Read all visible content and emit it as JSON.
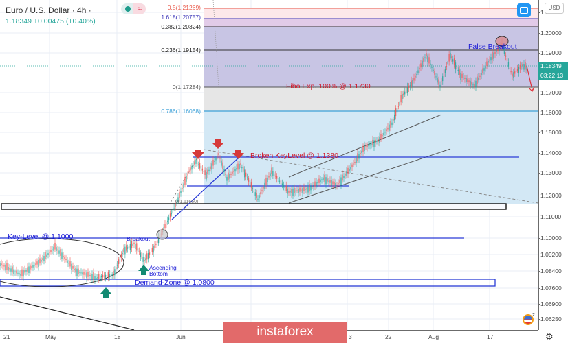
{
  "header": {
    "title": "Euro / U.S. Dollar · 4h ·",
    "quote": "1.18349  +0.00475 (+0.40%)",
    "last_price": "1.18349",
    "change": "+0.00475",
    "change_pct": "+0.40%"
  },
  "yaxis": {
    "currency": "USD",
    "ticks": [
      "1.21000",
      "1.20000",
      "1.19000",
      "1.17000",
      "1.16000",
      "1.15000",
      "1.14000",
      "1.13000",
      "1.12000",
      "1.11000",
      "1.10000",
      "1.09200",
      "1.08400",
      "1.07600",
      "1.06900",
      "1.06250"
    ],
    "price_tag": "1.18349",
    "countdown_tag": "03:22:13"
  },
  "xaxis": {
    "ticks": [
      "21",
      "May",
      "18",
      "Jun",
      "3",
      "22",
      "Aug",
      "17"
    ]
  },
  "fibonacci": [
    {
      "label": "0.5(1.21269)",
      "color": "#e8594a"
    },
    {
      "label": "1.618(1.20757)",
      "color": "#3a34b8"
    },
    {
      "label": "0.382(1.20324)",
      "color": "#222222"
    },
    {
      "label": "0.236(1.19154)",
      "color": "#222222"
    },
    {
      "label": "0(1.17284)",
      "color": "#555555"
    },
    {
      "label": "0.786(1.16068)",
      "color": "#3ba0d8"
    }
  ],
  "annotations": {
    "false_breakout": "False Breakout",
    "fibo_exp": "Fibo Exp. 100% @ 1.1730",
    "broken_key_level": "Broken KeyLevel @ 1.1380",
    "key_level": "Key-Level @ 1.1000",
    "breakout": "Breakout",
    "ascending_bottom_1": "Ascending",
    "ascending_bottom_2": "Bottom",
    "demand_zone": "Demand-Zone @ 1.0800",
    "small_fib_label": "0(1.11650)"
  },
  "calendar_badge": "2",
  "watermark": "instaforex",
  "colors": {
    "up": "#26a69a",
    "down": "#ef5350",
    "annotation_blue": "#1a1ad6",
    "annotation_red": "#d0182a",
    "arrow_green": "#138a72",
    "arrow_red": "#d63a3a"
  },
  "chart_data": {
    "type": "candlestick",
    "title": "Euro / U.S. Dollar · 4h",
    "symbol": "EUR/USD",
    "timeframe": "4h",
    "xlabel": "",
    "ylabel": "USD",
    "x_ticks": [
      "21",
      "May",
      "18",
      "Jun",
      "3",
      "22",
      "Aug",
      "17"
    ],
    "ylim": [
      1.058,
      1.216
    ],
    "last": 1.18349,
    "change": 0.00475,
    "change_pct": 0.4,
    "levels": [
      {
        "name": "Fib 0.5",
        "value": 1.21269
      },
      {
        "name": "Fib 1.618",
        "value": 1.20757
      },
      {
        "name": "Fib 0.382",
        "value": 1.20324
      },
      {
        "name": "Fib 0.236",
        "value": 1.19154
      },
      {
        "name": "Fib 0",
        "value": 1.17284
      },
      {
        "name": "Fib 0.786",
        "value": 1.16068
      },
      {
        "name": "Fibo Exp. 100%",
        "value": 1.173
      },
      {
        "name": "Broken Key Level",
        "value": 1.138
      },
      {
        "name": "Key-Level",
        "value": 1.1
      },
      {
        "name": "Demand-Zone",
        "value": 1.08
      }
    ],
    "approx_price_path": [
      {
        "x": "Apr 21",
        "close": 1.082
      },
      {
        "x": "May",
        "close": 1.091
      },
      {
        "x": "May 18",
        "close": 1.082
      },
      {
        "x": "May 25",
        "close": 1.098
      },
      {
        "x": "Jun",
        "close": 1.118
      },
      {
        "x": "Jun 10",
        "close": 1.137
      },
      {
        "x": "Jun 22",
        "close": 1.124
      },
      {
        "x": "Jul 3",
        "close": 1.128
      },
      {
        "x": "Jul 22",
        "close": 1.158
      },
      {
        "x": "Aug",
        "close": 1.182
      },
      {
        "x": "Aug 10",
        "close": 1.176
      },
      {
        "x": "Aug 17",
        "close": 1.195
      },
      {
        "x": "Aug 25",
        "close": 1.183
      }
    ],
    "grid": true,
    "legend": "none"
  }
}
